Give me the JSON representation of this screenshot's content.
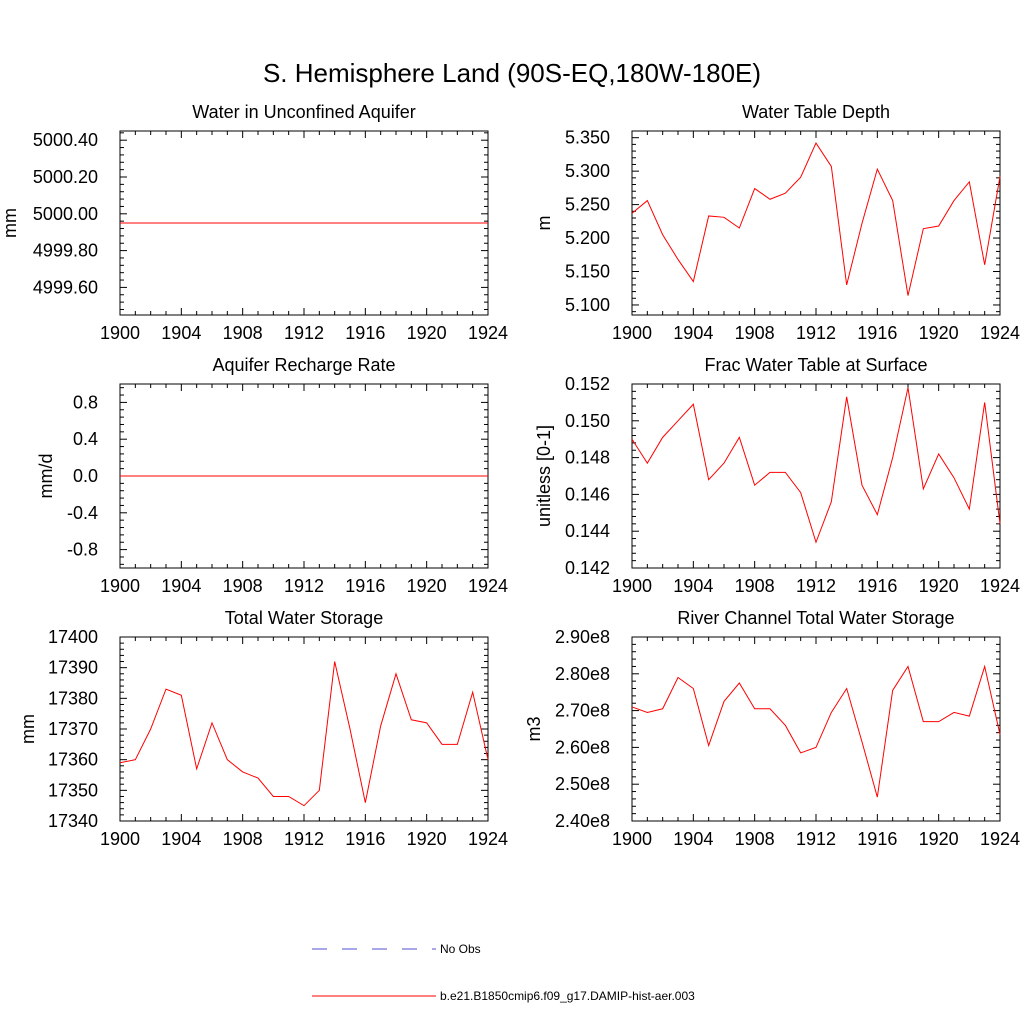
{
  "figure": {
    "title": "S. Hemisphere Land (90S-EQ,180W-180E)"
  },
  "legend": {
    "entries": [
      {
        "label": "No Obs",
        "color": "#0000ff",
        "dash": "dashed"
      },
      {
        "label": "b.e21.B1850cmip6.f09_g17.DAMIP-hist-aer.003",
        "color": "#ff0000",
        "dash": "solid"
      }
    ]
  },
  "chart_data": [
    {
      "type": "line",
      "title": "Water in Unconfined Aquifer",
      "ylabel": "mm",
      "xlabel": "",
      "x": [
        1900,
        1901,
        1902,
        1903,
        1904,
        1905,
        1906,
        1907,
        1908,
        1909,
        1910,
        1911,
        1912,
        1913,
        1914,
        1915,
        1916,
        1917,
        1918,
        1919,
        1920,
        1921,
        1922,
        1923,
        1924
      ],
      "xlim": [
        1900,
        1924
      ],
      "ylim": [
        4999.45,
        5000.45
      ],
      "xticks": [
        "1900",
        "1904",
        "1908",
        "1912",
        "1916",
        "1920",
        "1924"
      ],
      "yticks": [
        {
          "value": 4999.6,
          "label": "4999.60"
        },
        {
          "value": 4999.8,
          "label": "4999.80"
        },
        {
          "value": 5000.0,
          "label": "5000.00"
        },
        {
          "value": 5000.2,
          "label": "5000.20"
        },
        {
          "value": 5000.4,
          "label": "5000.40"
        }
      ],
      "series": [
        {
          "color": "#ff0000",
          "values": [
            4999.95,
            4999.95,
            4999.95,
            4999.95,
            4999.95,
            4999.95,
            4999.95,
            4999.95,
            4999.95,
            4999.95,
            4999.95,
            4999.95,
            4999.95,
            4999.95,
            4999.95,
            4999.95,
            4999.95,
            4999.95,
            4999.95,
            4999.95,
            4999.95,
            4999.95,
            4999.95,
            4999.95,
            4999.95
          ]
        }
      ]
    },
    {
      "type": "line",
      "title": "Water Table Depth",
      "ylabel": "m",
      "xlabel": "",
      "x": [
        1900,
        1901,
        1902,
        1903,
        1904,
        1905,
        1906,
        1907,
        1908,
        1909,
        1910,
        1911,
        1912,
        1913,
        1914,
        1915,
        1916,
        1917,
        1918,
        1919,
        1920,
        1921,
        1922,
        1923,
        1924
      ],
      "xlim": [
        1900,
        1924
      ],
      "ylim": [
        5.085,
        5.36
      ],
      "xticks": [
        "1900",
        "1904",
        "1908",
        "1912",
        "1916",
        "1920",
        "1924"
      ],
      "yticks": [
        {
          "value": 5.1,
          "label": "5.100"
        },
        {
          "value": 5.15,
          "label": "5.150"
        },
        {
          "value": 5.2,
          "label": "5.200"
        },
        {
          "value": 5.25,
          "label": "5.250"
        },
        {
          "value": 5.3,
          "label": "5.300"
        },
        {
          "value": 5.35,
          "label": "5.350"
        }
      ],
      "series": [
        {
          "color": "#ff0000",
          "values": [
            5.237,
            5.256,
            5.205,
            5.168,
            5.135,
            5.233,
            5.231,
            5.215,
            5.274,
            5.258,
            5.267,
            5.291,
            5.342,
            5.307,
            5.13,
            5.222,
            5.303,
            5.256,
            5.114,
            5.214,
            5.218,
            5.256,
            5.284,
            5.16,
            5.292
          ]
        }
      ]
    },
    {
      "type": "line",
      "title": "Aquifer Recharge Rate",
      "ylabel": "mm/d",
      "xlabel": "",
      "x": [
        1900,
        1901,
        1902,
        1903,
        1904,
        1905,
        1906,
        1907,
        1908,
        1909,
        1910,
        1911,
        1912,
        1913,
        1914,
        1915,
        1916,
        1917,
        1918,
        1919,
        1920,
        1921,
        1922,
        1923,
        1924
      ],
      "xlim": [
        1900,
        1924
      ],
      "ylim": [
        -1.0,
        1.0
      ],
      "xticks": [
        "1900",
        "1904",
        "1908",
        "1912",
        "1916",
        "1920",
        "1924"
      ],
      "yticks": [
        {
          "value": -0.8,
          "label": "-0.8"
        },
        {
          "value": -0.4,
          "label": "-0.4"
        },
        {
          "value": 0.0,
          "label": "0.0"
        },
        {
          "value": 0.4,
          "label": "0.4"
        },
        {
          "value": 0.8,
          "label": "0.8"
        }
      ],
      "series": [
        {
          "color": "#ff0000",
          "values": [
            0,
            0,
            0,
            0,
            0,
            0,
            0,
            0,
            0,
            0,
            0,
            0,
            0,
            0,
            0,
            0,
            0,
            0,
            0,
            0,
            0,
            0,
            0,
            0,
            0
          ]
        }
      ]
    },
    {
      "type": "line",
      "title": "Frac Water Table at Surface",
      "ylabel": "unitless [0-1]",
      "xlabel": "",
      "x": [
        1900,
        1901,
        1902,
        1903,
        1904,
        1905,
        1906,
        1907,
        1908,
        1909,
        1910,
        1911,
        1912,
        1913,
        1914,
        1915,
        1916,
        1917,
        1918,
        1919,
        1920,
        1921,
        1922,
        1923,
        1924
      ],
      "xlim": [
        1900,
        1924
      ],
      "ylim": [
        0.142,
        0.152
      ],
      "xticks": [
        "1900",
        "1904",
        "1908",
        "1912",
        "1916",
        "1920",
        "1924"
      ],
      "yticks": [
        {
          "value": 0.142,
          "label": "0.142"
        },
        {
          "value": 0.144,
          "label": "0.144"
        },
        {
          "value": 0.146,
          "label": "0.146"
        },
        {
          "value": 0.148,
          "label": "0.148"
        },
        {
          "value": 0.15,
          "label": "0.150"
        },
        {
          "value": 0.152,
          "label": "0.152"
        }
      ],
      "series": [
        {
          "color": "#ff0000",
          "values": [
            0.149,
            0.1477,
            0.1491,
            0.15,
            0.1509,
            0.1468,
            0.1477,
            0.1491,
            0.1465,
            0.1472,
            0.1472,
            0.1461,
            0.1434,
            0.1456,
            0.1513,
            0.1465,
            0.1449,
            0.148,
            0.1518,
            0.1463,
            0.1482,
            0.1469,
            0.1452,
            0.151,
            0.1444
          ]
        }
      ]
    },
    {
      "type": "line",
      "title": "Total Water Storage",
      "ylabel": "mm",
      "xlabel": "",
      "x": [
        1900,
        1901,
        1902,
        1903,
        1904,
        1905,
        1906,
        1907,
        1908,
        1909,
        1910,
        1911,
        1912,
        1913,
        1914,
        1915,
        1916,
        1917,
        1918,
        1919,
        1920,
        1921,
        1922,
        1923,
        1924
      ],
      "xlim": [
        1900,
        1924
      ],
      "ylim": [
        17340,
        17400
      ],
      "xticks": [
        "1900",
        "1904",
        "1908",
        "1912",
        "1916",
        "1920",
        "1924"
      ],
      "yticks": [
        {
          "value": 17340,
          "label": "17340"
        },
        {
          "value": 17350,
          "label": "17350"
        },
        {
          "value": 17360,
          "label": "17360"
        },
        {
          "value": 17370,
          "label": "17370"
        },
        {
          "value": 17380,
          "label": "17380"
        },
        {
          "value": 17390,
          "label": "17390"
        },
        {
          "value": 17400,
          "label": "17400"
        }
      ],
      "series": [
        {
          "color": "#ff0000",
          "values": [
            17359,
            17360,
            17370,
            17383,
            17381,
            17357,
            17372,
            17360,
            17356,
            17354,
            17348,
            17348,
            17345,
            17350,
            17392,
            17370,
            17346,
            17371,
            17388,
            17373,
            17372,
            17365,
            17365,
            17382,
            17360
          ]
        }
      ]
    },
    {
      "type": "line",
      "title": "River Channel Total Water Storage",
      "ylabel": "m3",
      "xlabel": "",
      "x": [
        1900,
        1901,
        1902,
        1903,
        1904,
        1905,
        1906,
        1907,
        1908,
        1909,
        1910,
        1911,
        1912,
        1913,
        1914,
        1915,
        1916,
        1917,
        1918,
        1919,
        1920,
        1921,
        1922,
        1923,
        1924
      ],
      "xlim": [
        1900,
        1924
      ],
      "ylim": [
        240000000,
        290000000
      ],
      "xticks": [
        "1900",
        "1904",
        "1908",
        "1912",
        "1916",
        "1920",
        "1924"
      ],
      "yticks": [
        {
          "value": 240000000,
          "label": "2.40e8"
        },
        {
          "value": 250000000,
          "label": "2.50e8"
        },
        {
          "value": 260000000,
          "label": "2.60e8"
        },
        {
          "value": 270000000,
          "label": "2.70e8"
        },
        {
          "value": 280000000,
          "label": "2.80e8"
        },
        {
          "value": 290000000,
          "label": "2.90e8"
        }
      ],
      "series": [
        {
          "color": "#ff0000",
          "values": [
            271000000,
            269500000,
            270500000,
            279000000,
            276000000,
            260500000,
            272500000,
            277500000,
            270500000,
            270500000,
            266000000,
            258500000,
            260000000,
            269500000,
            276000000,
            261500000,
            246500000,
            275500000,
            282000000,
            267000000,
            267000000,
            269500000,
            268500000,
            282000000,
            263500000
          ]
        }
      ]
    }
  ]
}
